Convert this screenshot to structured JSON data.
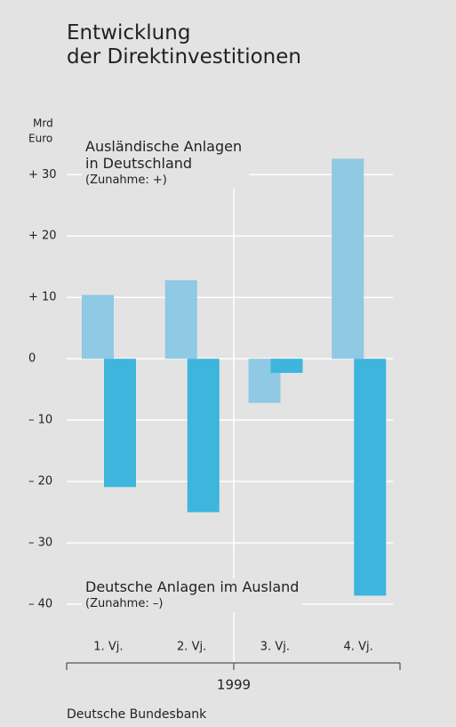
{
  "chart_data": {
    "type": "bar",
    "title": [
      "Entwicklung",
      "der Direktinvestitionen"
    ],
    "y_label": [
      "Mrd",
      "Euro"
    ],
    "x_label": "1999",
    "source": "Deutsche Bundesbank",
    "categories": [
      "1. Vj.",
      "2. Vj.",
      "3. Vj.",
      "4. Vj."
    ],
    "series": [
      {
        "name": "Ausländische Anlagen in Deutschland",
        "note": "(Zunahme: +)",
        "color": "#8fc9e4",
        "values": [
          10.4,
          12.8,
          -7.2,
          32.6
        ]
      },
      {
        "name": "Deutsche Anlagen im Ausland",
        "note": "(Zunahme: –)",
        "color": "#3db5dd",
        "values": [
          -20.9,
          -25.0,
          -2.3,
          -38.6
        ]
      }
    ],
    "ylim": [
      -50,
      37
    ],
    "yticks": [
      {
        "value": 30,
        "label": "+ 30"
      },
      {
        "value": 20,
        "label": "+ 20"
      },
      {
        "value": 10,
        "label": "+ 10"
      },
      0,
      {
        "value": -10,
        "label": "– 10"
      },
      {
        "value": -20,
        "label": "– 20"
      },
      {
        "value": -30,
        "label": "– 30"
      },
      {
        "value": -40,
        "label": "– 40"
      }
    ],
    "grid": true
  }
}
